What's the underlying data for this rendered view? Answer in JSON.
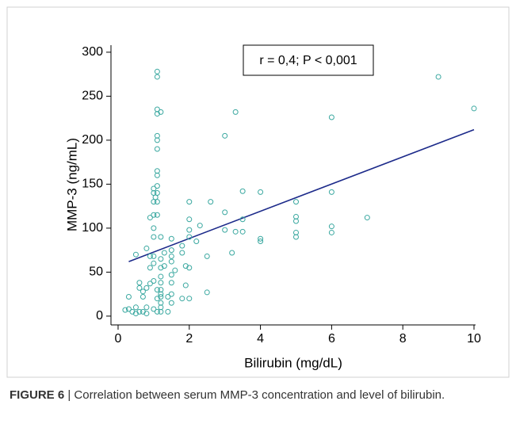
{
  "chart_data": {
    "type": "scatter",
    "xlabel": "Bilirubin (mg/dL)",
    "ylabel": "MMP-3 (ng/mL)",
    "annotation": "r = 0,4; P < 0,001",
    "caption_label": "FIGURE 6",
    "caption": "| Correlation between serum MMP-3 concentration and level of bilirubin.",
    "xlim": [
      -0.2,
      10
    ],
    "ylim": [
      -10,
      308
    ],
    "xticks": [
      0,
      2,
      4,
      6,
      8,
      10
    ],
    "yticks": [
      0,
      50,
      100,
      150,
      200,
      250,
      300
    ],
    "color": "#3aa8a0",
    "fit_color": "#1c2a8a",
    "fit_line": {
      "x": [
        0.3,
        10
      ],
      "y": [
        62,
        212
      ]
    },
    "x": [
      0.2,
      0.3,
      0.3,
      0.4,
      0.5,
      0.5,
      0.5,
      0.6,
      0.6,
      0.6,
      0.7,
      0.7,
      0.7,
      0.8,
      0.8,
      0.8,
      0.8,
      0.9,
      0.9,
      0.9,
      0.9,
      1.0,
      1.0,
      1.0,
      1.0,
      1.0,
      1.0,
      1.0,
      1.0,
      1.0,
      1.0,
      1.05,
      1.1,
      1.1,
      1.1,
      1.1,
      1.1,
      1.1,
      1.1,
      1.1,
      1.1,
      1.1,
      1.1,
      1.1,
      1.1,
      1.1,
      1.1,
      1.1,
      1.2,
      1.2,
      1.2,
      1.2,
      1.2,
      1.2,
      1.2,
      1.2,
      1.2,
      1.2,
      1.2,
      1.2,
      1.3,
      1.3,
      1.4,
      1.4,
      1.5,
      1.5,
      1.5,
      1.5,
      1.5,
      1.5,
      1.5,
      1.5,
      1.6,
      1.8,
      1.8,
      1.8,
      1.9,
      1.9,
      2.0,
      2.0,
      2.0,
      2.0,
      2.0,
      2.0,
      2.2,
      2.3,
      2.5,
      2.5,
      2.6,
      3.0,
      3.0,
      3.0,
      3.2,
      3.3,
      3.3,
      3.5,
      3.5,
      3.5,
      4.0,
      4.0,
      4.0,
      5.0,
      5.0,
      5.0,
      5.0,
      5.0,
      6.0,
      6.0,
      6.0,
      6.0,
      7.0,
      9.0,
      10.0
    ],
    "values": [
      7,
      8,
      22,
      5,
      10,
      3,
      70,
      5,
      32,
      38,
      22,
      28,
      5,
      32,
      10,
      3,
      77,
      37,
      55,
      68,
      112,
      60,
      40,
      8,
      68,
      90,
      100,
      115,
      130,
      140,
      145,
      135,
      148,
      5,
      20,
      30,
      115,
      130,
      140,
      160,
      165,
      190,
      200,
      205,
      230,
      235,
      272,
      278,
      5,
      10,
      15,
      22,
      25,
      30,
      38,
      45,
      55,
      65,
      90,
      232,
      57,
      72,
      5,
      22,
      15,
      25,
      38,
      47,
      62,
      68,
      75,
      88,
      52,
      20,
      80,
      72,
      35,
      57,
      20,
      55,
      90,
      98,
      110,
      130,
      85,
      103,
      27,
      68,
      130,
      98,
      118,
      205,
      72,
      232,
      96,
      96,
      110,
      142,
      85,
      88,
      141,
      90,
      95,
      108,
      113,
      130,
      95,
      102,
      141,
      226,
      112,
      272,
      236
    ]
  }
}
